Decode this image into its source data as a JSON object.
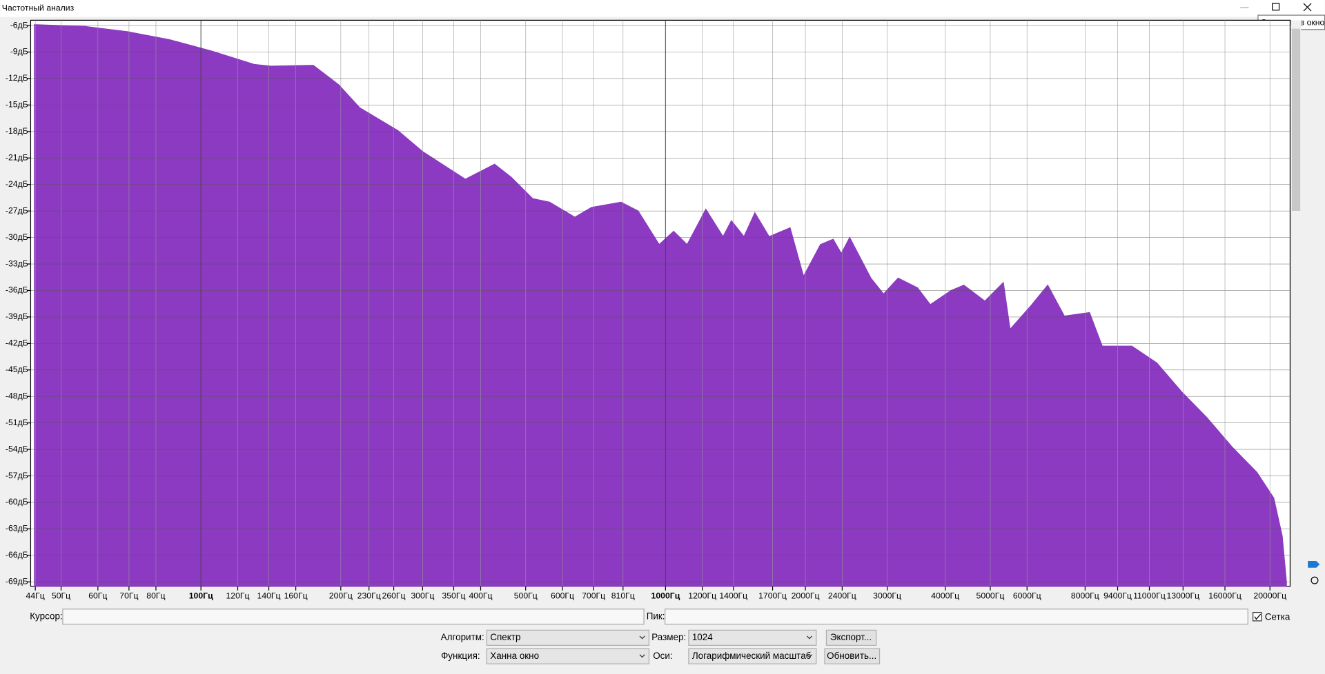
{
  "window_title": "Частотный анализ",
  "tooltip": "Свернуть в окно",
  "chart_data": {
    "type": "area",
    "color": "#8b3ac1",
    "log_x": true,
    "grid": true,
    "x": [
      43.8,
      56.3,
      69.5,
      85.6,
      105.6,
      130.2,
      141.5,
      174.5,
      197.9,
      219.6,
      265.4,
      300.5,
      370.8,
      428.6,
      466,
      517.6,
      563,
      638,
      693,
      802,
      873,
      969,
      1041,
      1113,
      1221,
      1330,
      1386,
      1475,
      1557,
      1671,
      1854,
      1982,
      2155,
      2295,
      2390,
      2491,
      2767,
      2947,
      3167,
      3487,
      3714,
      4120,
      4386,
      4868,
      5335,
      5516,
      6123,
      6648,
      7220,
      8178,
      8709,
      10083,
      11414,
      12920,
      14628,
      16560,
      18747,
      20378,
      21250,
      21700
    ],
    "values": [
      -5.9,
      -6.1,
      -6.7,
      -7.6,
      -8.9,
      -10.4,
      -10.6,
      -10.5,
      -12.7,
      -15.3,
      -17.9,
      -20.3,
      -23.4,
      -21.7,
      -23.2,
      -25.6,
      -26,
      -27.7,
      -26.6,
      -26,
      -27,
      -30.8,
      -29.3,
      -30.8,
      -26.8,
      -29.9,
      -28.1,
      -29.9,
      -27.2,
      -29.9,
      -28.9,
      -34.4,
      -30.8,
      -30.2,
      -31.8,
      -30,
      -34.6,
      -36.4,
      -34.6,
      -35.7,
      -37.6,
      -36,
      -35.4,
      -37.2,
      -35.1,
      -40.4,
      -37.7,
      -35.4,
      -38.9,
      -38.5,
      -42.3,
      -42.3,
      -44.2,
      -47.5,
      -50.4,
      -53.7,
      -56.6,
      -59.5,
      -63.8,
      -69
    ],
    "xlim": [
      43,
      22100
    ],
    "ylim": [
      -69.5,
      -5.4
    ],
    "xticks": [
      {
        "value": 44,
        "label": "44Гц"
      },
      {
        "value": 50,
        "label": "50Гц"
      },
      {
        "value": 60,
        "label": "60Гц"
      },
      {
        "value": 70,
        "label": "70Гц"
      },
      {
        "value": 80,
        "label": "80Гц"
      },
      {
        "value": 100,
        "label": "100Гц"
      },
      {
        "value": 120,
        "label": "120Гц"
      },
      {
        "value": 140,
        "label": "140Гц"
      },
      {
        "value": 160,
        "label": "160Гц"
      },
      {
        "value": 200,
        "label": "200Гц"
      },
      {
        "value": 230,
        "label": "230Гц"
      },
      {
        "value": 260,
        "label": "260Гц"
      },
      {
        "value": 300,
        "label": "300Гц"
      },
      {
        "value": 350,
        "label": "350Гц"
      },
      {
        "value": 400,
        "label": "400Гц"
      },
      {
        "value": 500,
        "label": "500Гц"
      },
      {
        "value": 600,
        "label": "600Гц"
      },
      {
        "value": 700,
        "label": "700Гц"
      },
      {
        "value": 810,
        "label": "810Гц"
      },
      {
        "value": 1000,
        "label": "1000Гц"
      },
      {
        "value": 1200,
        "label": "1200Гц"
      },
      {
        "value": 1400,
        "label": "1400Гц"
      },
      {
        "value": 1700,
        "label": "1700Гц"
      },
      {
        "value": 2000,
        "label": "2000Гц"
      },
      {
        "value": 2400,
        "label": "2400Гц"
      },
      {
        "value": 3000,
        "label": "3000Гц"
      },
      {
        "value": 4000,
        "label": "4000Гц"
      },
      {
        "value": 5000,
        "label": "5000Гц"
      },
      {
        "value": 6000,
        "label": "6000Гц"
      },
      {
        "value": 8000,
        "label": "8000Гц"
      },
      {
        "value": 9400,
        "label": "9400Гц"
      },
      {
        "value": 11000,
        "label": "11000Гц"
      },
      {
        "value": 13000,
        "label": "13000Гц"
      },
      {
        "value": 16000,
        "label": "16000Гц"
      },
      {
        "value": 20000,
        "label": "20000Гц"
      }
    ],
    "yticks": [
      {
        "value": -6,
        "label": "-6дБ"
      },
      {
        "value": -9,
        "label": "-9дБ"
      },
      {
        "value": -12,
        "label": "-12дБ"
      },
      {
        "value": -15,
        "label": "-15дБ"
      },
      {
        "value": -18,
        "label": "-18дБ"
      },
      {
        "value": -21,
        "label": "-21дБ"
      },
      {
        "value": -24,
        "label": "-24дБ"
      },
      {
        "value": -27,
        "label": "-27дБ"
      },
      {
        "value": -30,
        "label": "-30дБ"
      },
      {
        "value": -33,
        "label": "-33дБ"
      },
      {
        "value": -36,
        "label": "-36дБ"
      },
      {
        "value": -39,
        "label": "-39дБ"
      },
      {
        "value": -42,
        "label": "-42дБ"
      },
      {
        "value": -45,
        "label": "-45дБ"
      },
      {
        "value": -48,
        "label": "-48дБ"
      },
      {
        "value": -51,
        "label": "-51дБ"
      },
      {
        "value": -54,
        "label": "-54дБ"
      },
      {
        "value": -57,
        "label": "-57дБ"
      },
      {
        "value": -60,
        "label": "-60дБ"
      },
      {
        "value": -63,
        "label": "-63дБ"
      },
      {
        "value": -66,
        "label": "-66дБ"
      },
      {
        "value": -69,
        "label": "-69дБ"
      }
    ]
  },
  "controls": {
    "cursor": "Курсор:",
    "peak": "Пик:",
    "grid": "Сетка",
    "algorithm_label": "Алгоритм:",
    "algorithm": "Спектр",
    "size_label": "Размер:",
    "size": "1024",
    "function_label": "Функция:",
    "function": "Ханна  окно",
    "axis_label": "Оси:",
    "axis": "Логарифмический масштаб",
    "export": "Экспорт...",
    "refresh": "Обновить..."
  }
}
